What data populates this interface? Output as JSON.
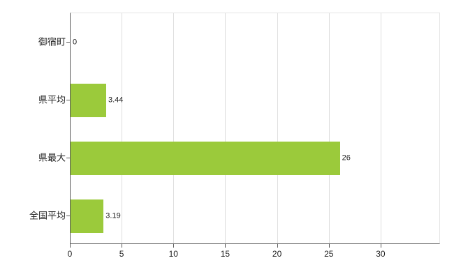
{
  "chart_data": {
    "type": "bar",
    "orientation": "horizontal",
    "title": "",
    "xlabel": "",
    "ylabel": "",
    "categories": [
      "御宿町",
      "県平均",
      "県最大",
      "全国平均"
    ],
    "values": [
      0,
      3.44,
      26,
      3.19
    ],
    "value_labels": [
      "0",
      "3.44",
      "26",
      "3.19"
    ],
    "xticks": [
      0,
      5,
      10,
      15,
      20,
      25,
      30
    ],
    "xlim": [
      0,
      30
    ],
    "grid": "vertical-on",
    "legend": "none",
    "bar_color": "#9BCA3B",
    "axis_color": "#5a5a5a",
    "gridline_color": "#dedede",
    "background_color": "#ffffff"
  }
}
